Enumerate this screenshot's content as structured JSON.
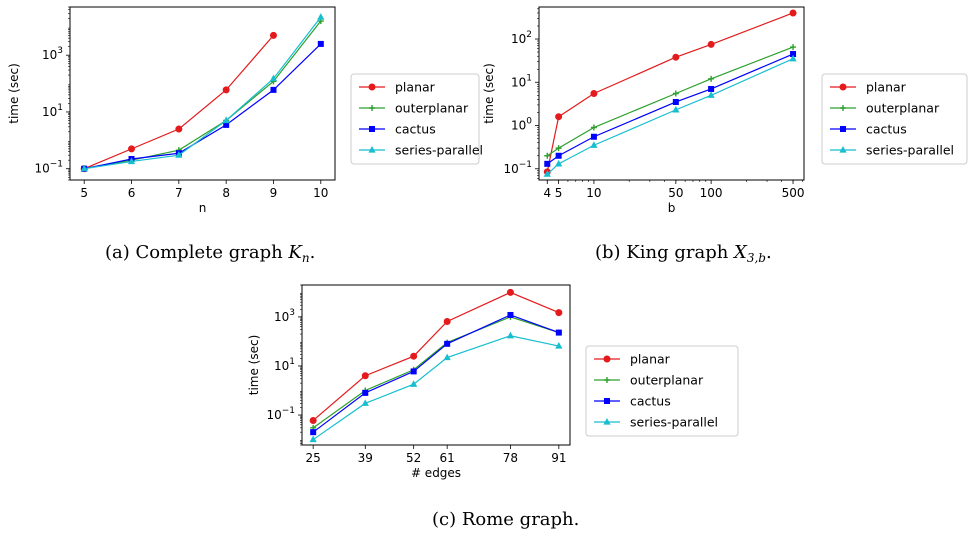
{
  "charts": [
    {
      "caption_prefix": "(a) Complete graph ",
      "caption_math": "K",
      "caption_sub": "n",
      "caption_suffix": ".",
      "chart_data": {
        "type": "line",
        "xlabel": "n",
        "ylabel": "time (sec)",
        "xscale": "linear",
        "yscale": "log",
        "x_ticks": [
          5,
          6,
          7,
          8,
          9,
          10
        ],
        "y_ticks": [
          {
            "value": 0.1,
            "base": "10",
            "exp": "−1"
          },
          {
            "value": 10,
            "base": "10",
            "exp": "1"
          },
          {
            "value": 1000,
            "base": "10",
            "exp": "3"
          }
        ],
        "xlim": [
          4.7,
          10.3
        ],
        "ylim": [
          0.04,
          50000
        ],
        "legend_position": "outside-right",
        "series": [
          {
            "name": "planar",
            "color": "#e41a1c",
            "marker": "circle",
            "x": [
              5,
              6,
              7,
              8,
              9
            ],
            "y": [
              0.1,
              0.5,
              2.5,
              60,
              5000
            ]
          },
          {
            "name": "outerplanar",
            "color": "#2ca02c",
            "marker": "plus",
            "x": [
              5,
              6,
              7,
              8,
              9,
              10
            ],
            "y": [
              0.1,
              0.2,
              0.45,
              5,
              120,
              16000
            ]
          },
          {
            "name": "cactus",
            "color": "#0000ff",
            "marker": "square",
            "x": [
              5,
              6,
              7,
              8,
              9,
              10
            ],
            "y": [
              0.1,
              0.22,
              0.35,
              3.5,
              60,
              2500
            ]
          },
          {
            "name": "series-parallel",
            "color": "#17becf",
            "marker": "triangle",
            "x": [
              5,
              6,
              7,
              8,
              9,
              10
            ],
            "y": [
              0.1,
              0.18,
              0.3,
              5,
              150,
              22000
            ]
          }
        ]
      }
    },
    {
      "caption_prefix": "(b) King graph ",
      "caption_math": "X",
      "caption_sub": "3,b",
      "caption_suffix": ".",
      "chart_data": {
        "type": "line",
        "xlabel": "b",
        "ylabel": "time (sec)",
        "xscale": "log",
        "yscale": "log",
        "x_ticks": [
          4,
          5,
          10,
          50,
          100,
          500
        ],
        "y_ticks": [
          {
            "value": 0.1,
            "base": "10",
            "exp": "−1"
          },
          {
            "value": 1,
            "base": "10",
            "exp": "0"
          },
          {
            "value": 10,
            "base": "10",
            "exp": "1"
          },
          {
            "value": 100,
            "base": "10",
            "exp": "2"
          }
        ],
        "xlim": [
          3.4,
          620
        ],
        "ylim": [
          0.055,
          550
        ],
        "legend_position": "outside-right",
        "series": [
          {
            "name": "planar",
            "color": "#e41a1c",
            "marker": "circle",
            "x": [
              4,
              5,
              10,
              50,
              100,
              500
            ],
            "y": [
              0.085,
              1.6,
              5.5,
              38,
              75,
              400
            ]
          },
          {
            "name": "outerplanar",
            "color": "#2ca02c",
            "marker": "plus",
            "x": [
              4,
              5,
              10,
              50,
              100,
              500
            ],
            "y": [
              0.2,
              0.3,
              0.9,
              5.5,
              12,
              65
            ]
          },
          {
            "name": "cactus",
            "color": "#0000ff",
            "marker": "square",
            "x": [
              4,
              5,
              10,
              50,
              100,
              500
            ],
            "y": [
              0.13,
              0.2,
              0.55,
              3.5,
              7,
              45
            ]
          },
          {
            "name": "series-parallel",
            "color": "#17becf",
            "marker": "triangle",
            "x": [
              4,
              5,
              10,
              50,
              100,
              500
            ],
            "y": [
              0.075,
              0.13,
              0.35,
              2.3,
              5,
              35
            ]
          }
        ]
      }
    },
    {
      "caption_prefix": "(c) Rome graph.",
      "caption_math": "",
      "caption_sub": "",
      "caption_suffix": "",
      "chart_data": {
        "type": "line",
        "xlabel": "# edges",
        "ylabel": "time (sec)",
        "xscale": "linear",
        "yscale": "log",
        "x_ticks": [
          25,
          39,
          52,
          61,
          78,
          91
        ],
        "y_ticks": [
          {
            "value": 0.1,
            "base": "10",
            "exp": "−1"
          },
          {
            "value": 10,
            "base": "10",
            "exp": "1"
          },
          {
            "value": 1000,
            "base": "10",
            "exp": "3"
          }
        ],
        "xlim": [
          22,
          94
        ],
        "ylim": [
          0.006,
          20000
        ],
        "legend_position": "outside-right",
        "series": [
          {
            "name": "planar",
            "color": "#e41a1c",
            "marker": "circle",
            "x": [
              25,
              39,
              52,
              61,
              78,
              91
            ],
            "y": [
              0.06,
              4,
              25,
              650,
              10000,
              1500
            ]
          },
          {
            "name": "outerplanar",
            "color": "#2ca02c",
            "marker": "plus",
            "x": [
              25,
              39,
              52,
              61,
              78,
              91
            ],
            "y": [
              0.03,
              1,
              7,
              90,
              1000,
              230
            ]
          },
          {
            "name": "cactus",
            "color": "#0000ff",
            "marker": "square",
            "x": [
              25,
              39,
              52,
              61,
              78,
              91
            ],
            "y": [
              0.02,
              0.8,
              6,
              80,
              1200,
              230
            ]
          },
          {
            "name": "series-parallel",
            "color": "#17becf",
            "marker": "triangle",
            "x": [
              25,
              39,
              52,
              61,
              78,
              91
            ],
            "y": [
              0.01,
              0.3,
              1.8,
              22,
              170,
              65
            ]
          }
        ]
      }
    }
  ]
}
